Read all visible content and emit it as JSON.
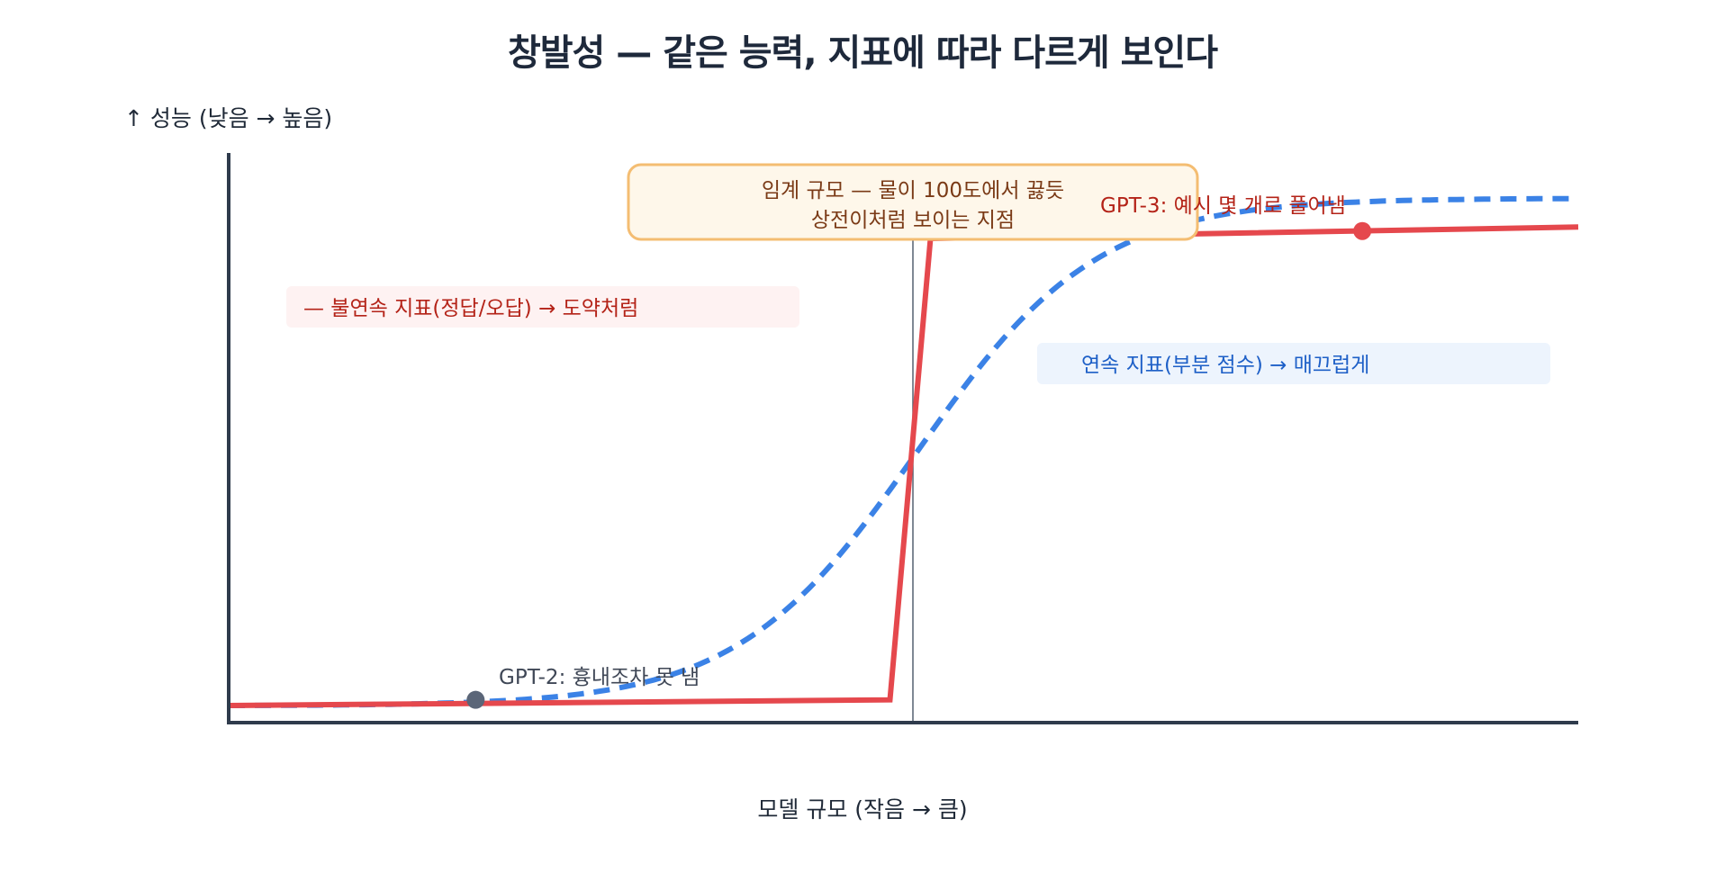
{
  "title": "창발성 — 같은 능력, 지표에 따라 다르게 보인다",
  "y_axis_label": "↑ 성능 (낮음 → 높음)",
  "x_axis_label": "모델 규모 (작음 → 큼)",
  "threshold_note": {
    "line1": "임계 규모 — 물이 100도에서 끓듯",
    "line2": "상전이처럼 보이는 지점"
  },
  "labels": {
    "discontinuous": "— 불연속 지표(정답/오답) → 도약처럼",
    "continuous": "연속 지표(부분 점수) → 매끄럽게",
    "gpt2": "GPT-2: 흉내조차 못 냄",
    "gpt3": "GPT-3: 예시 몇 개로 풀어냄"
  },
  "colors": {
    "discontinuous": "#e5484d",
    "continuous": "#3b82e6",
    "axis": "#2f3b4c",
    "gpt2_point": "#5b6678"
  },
  "chart_data": {
    "type": "line",
    "x_range": [
      0,
      1
    ],
    "y_range": [
      0,
      1
    ],
    "series": [
      {
        "style": "solid",
        "color": "#e5484d",
        "x": [
          0,
          0.49,
          0.52,
          1.0
        ],
        "y": [
          0.03,
          0.04,
          0.85,
          0.87
        ]
      },
      {
        "style": "dashed",
        "color": "#3b82e6",
        "function": "logistic",
        "midpoint": 0.51,
        "steepness": 7.5,
        "x": [
          0,
          0.1,
          0.2,
          0.3,
          0.4,
          0.5,
          0.6,
          0.7,
          0.8,
          0.9,
          1.0
        ],
        "y": [
          0.03,
          0.05,
          0.09,
          0.18,
          0.33,
          0.53,
          0.7,
          0.8,
          0.85,
          0.88,
          0.9
        ]
      }
    ],
    "threshold_x": 0.507,
    "points": [
      {
        "label": "GPT-2",
        "x": 0.183,
        "y": 0.04
      },
      {
        "label": "GPT-3",
        "x": 0.84,
        "y": 0.863
      }
    ]
  }
}
